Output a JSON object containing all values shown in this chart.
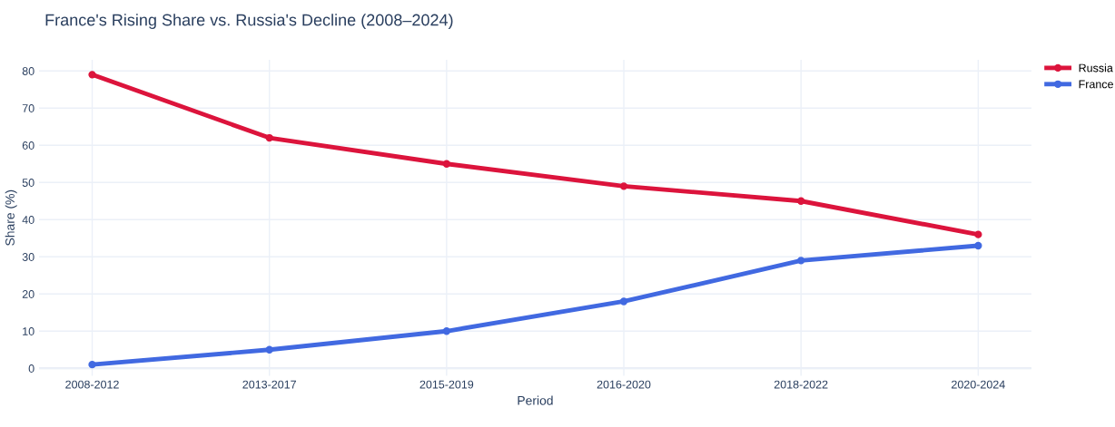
{
  "chart_data": {
    "type": "line",
    "title": "France's Rising Share vs. Russia's Decline (2008–2024)",
    "xlabel": "Period",
    "ylabel": "Share (%)",
    "categories": [
      "2008-2012",
      "2013-2017",
      "2015-2019",
      "2016-2020",
      "2018-2022",
      "2020-2024"
    ],
    "series": [
      {
        "name": "Russia",
        "color": "#dc143c",
        "values": [
          79,
          62,
          55,
          49,
          45,
          36
        ]
      },
      {
        "name": "France",
        "color": "#4169e1",
        "values": [
          1,
          5,
          10,
          18,
          29,
          33
        ]
      }
    ],
    "ylim": [
      -2,
      83
    ],
    "yticks": [
      0,
      10,
      20,
      30,
      40,
      50,
      60,
      70,
      80
    ],
    "grid": true,
    "legend": "top right",
    "marker": "circle",
    "line_style": "solid"
  }
}
